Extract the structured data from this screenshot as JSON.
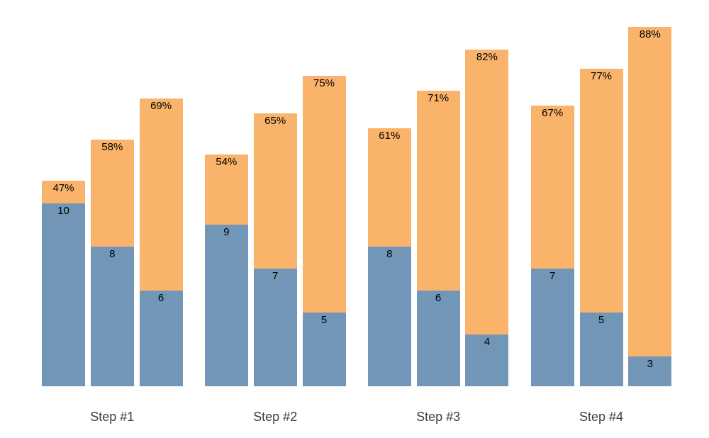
{
  "chart_data": {
    "type": "bar",
    "variant": "grouped-stacked",
    "title": "",
    "xlabel": "",
    "ylabel": "",
    "legend_position": "none",
    "grid": false,
    "axes_visible": false,
    "background": "#ffffff",
    "categories": [
      "Step #1",
      "Step #2",
      "Step #3",
      "Step #4"
    ],
    "colors": {
      "count_segment": "#7296B7",
      "percent_segment": "#F9B36A",
      "bar_label_text": "#000000",
      "category_label_text": "#3D3D3D"
    },
    "groups": [
      {
        "label": "Step #1",
        "bars": [
          {
            "count": 10,
            "count_label": "10",
            "percent": 47,
            "percent_label": "47%"
          },
          {
            "count": 8,
            "count_label": "8",
            "percent": 58,
            "percent_label": "58%"
          },
          {
            "count": 6,
            "count_label": "6",
            "percent": 69,
            "percent_label": "69%"
          }
        ]
      },
      {
        "label": "Step #2",
        "bars": [
          {
            "count": 9,
            "count_label": "9",
            "percent": 54,
            "percent_label": "54%"
          },
          {
            "count": 7,
            "count_label": "7",
            "percent": 65,
            "percent_label": "65%"
          },
          {
            "count": 5,
            "count_label": "5",
            "percent": 75,
            "percent_label": "75%"
          }
        ]
      },
      {
        "label": "Step #3",
        "bars": [
          {
            "count": 8,
            "count_label": "8",
            "percent": 61,
            "percent_label": "61%"
          },
          {
            "count": 6,
            "count_label": "6",
            "percent": 71,
            "percent_label": "71%"
          },
          {
            "count": 4,
            "count_label": "4",
            "percent": 82,
            "percent_label": "82%"
          }
        ]
      },
      {
        "label": "Step #4",
        "bars": [
          {
            "count": 7,
            "count_label": "7",
            "percent": 67,
            "percent_label": "67%"
          },
          {
            "count": 5,
            "count_label": "5",
            "percent": 77,
            "percent_label": "77%"
          },
          {
            "count": 3,
            "count_label": "3",
            "percent": 88,
            "percent_label": "88%"
          }
        ]
      }
    ]
  }
}
